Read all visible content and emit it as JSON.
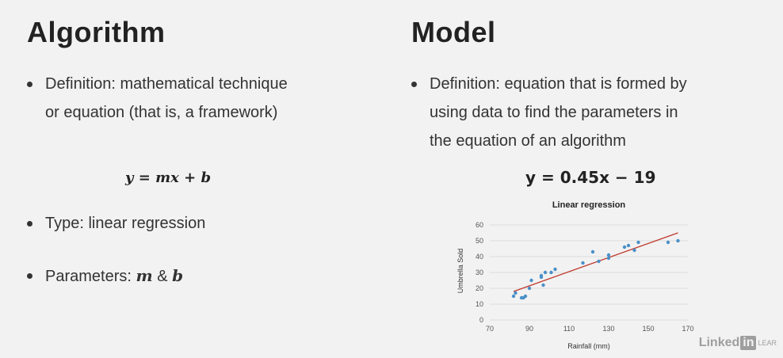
{
  "left": {
    "heading": "Algorithm",
    "bullet1_line1": "Definition: mathematical technique",
    "bullet1_line2": "or equation (that is, a framework)",
    "equation": "y = mx + b",
    "bullet2": "Type: linear regression",
    "bullet3_prefix": "Parameters: ",
    "param_m": "m",
    "param_amp": " & ",
    "param_b": "b"
  },
  "right": {
    "heading": "Model",
    "bullet1_line1": "Definition: equation that is formed by",
    "bullet1_line2": "using data to find the parameters in",
    "bullet1_line3": "the equation of an algorithm",
    "equation": "y = 0.45x − 19"
  },
  "watermark": {
    "linked": "Linked",
    "in": "in",
    "learn": "LEAR"
  },
  "chart_data": {
    "type": "scatter",
    "title": "Linear regression",
    "xlabel": "Rainfall (mm)",
    "ylabel": "Umbrella Sold",
    "xlim": [
      70,
      170
    ],
    "ylim": [
      0,
      60
    ],
    "x_ticks": [
      70,
      90,
      110,
      130,
      150,
      170
    ],
    "y_ticks": [
      0,
      10,
      20,
      30,
      40,
      50,
      60
    ],
    "grid": true,
    "point_color": "#4a90c8",
    "line_color": "#c0392b",
    "points": [
      [
        82,
        15
      ],
      [
        83,
        17
      ],
      [
        86,
        14
      ],
      [
        87,
        14
      ],
      [
        88,
        15
      ],
      [
        90,
        20
      ],
      [
        91,
        25
      ],
      [
        96,
        27
      ],
      [
        96,
        28
      ],
      [
        97,
        22
      ],
      [
        98,
        30
      ],
      [
        101,
        30
      ],
      [
        103,
        32
      ],
      [
        117,
        36
      ],
      [
        122,
        43
      ],
      [
        125,
        37
      ],
      [
        130,
        39
      ],
      [
        130,
        41
      ],
      [
        138,
        46
      ],
      [
        140,
        47
      ],
      [
        143,
        44
      ],
      [
        145,
        49
      ],
      [
        160,
        49
      ],
      [
        165,
        50
      ]
    ],
    "trendline": {
      "x": [
        82,
        165
      ],
      "y": [
        18,
        55
      ]
    }
  }
}
